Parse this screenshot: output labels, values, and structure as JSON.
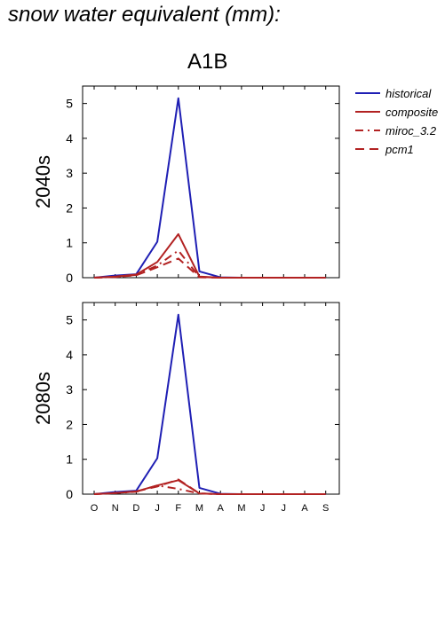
{
  "title": "snow water equivalent (mm):",
  "scenario": "A1B",
  "chart_data": {
    "type": "line",
    "categories": [
      "O",
      "N",
      "D",
      "J",
      "F",
      "M",
      "A",
      "M",
      "J",
      "J",
      "A",
      "S"
    ],
    "ylim": [
      0,
      5.5
    ],
    "yticks": [
      "0",
      "1",
      "2",
      "3",
      "4",
      "5"
    ],
    "legend_position": "right",
    "grid": false,
    "series_styles": [
      {
        "name": "historical",
        "color": "#1f1fb4",
        "dash": "solid"
      },
      {
        "name": "composite",
        "color": "#b22222",
        "dash": "solid"
      },
      {
        "name": "miroc_3.2",
        "color": "#b22222",
        "dash": "dashdot"
      },
      {
        "name": "pcm1",
        "color": "#b22222",
        "dash": "dashed"
      }
    ],
    "panels": [
      {
        "ylabel": "2040s",
        "series": [
          {
            "name": "historical",
            "values": [
              0,
              0.06,
              0.1,
              1.03,
              5.15,
              0.18,
              0.01,
              0,
              0,
              0,
              0,
              0
            ]
          },
          {
            "name": "composite",
            "values": [
              0,
              0.03,
              0.09,
              0.45,
              1.25,
              0.03,
              0,
              0,
              0,
              0,
              0,
              0
            ]
          },
          {
            "name": "miroc_3.2",
            "values": [
              0,
              0.02,
              0.08,
              0.35,
              0.78,
              0.02,
              0,
              0,
              0,
              0,
              0,
              0
            ]
          },
          {
            "name": "pcm1",
            "values": [
              0,
              0.02,
              0.07,
              0.3,
              0.55,
              0.01,
              0,
              0,
              0,
              0,
              0,
              0
            ]
          }
        ]
      },
      {
        "ylabel": "2080s",
        "series": [
          {
            "name": "historical",
            "values": [
              0,
              0.06,
              0.1,
              1.03,
              5.15,
              0.18,
              0.01,
              0,
              0,
              0,
              0,
              0
            ]
          },
          {
            "name": "composite",
            "values": [
              0,
              0.03,
              0.08,
              0.25,
              0.4,
              0.02,
              0,
              0,
              0,
              0,
              0,
              0
            ]
          },
          {
            "name": "miroc_3.2",
            "values": [
              0,
              0.03,
              0.07,
              0.25,
              0.15,
              0.02,
              0,
              0,
              0,
              0,
              0,
              0
            ]
          },
          {
            "name": "pcm1",
            "values": [
              0,
              0.03,
              0.08,
              0.22,
              0.42,
              0.02,
              0,
              0,
              0,
              0,
              0,
              0
            ]
          }
        ]
      }
    ]
  }
}
